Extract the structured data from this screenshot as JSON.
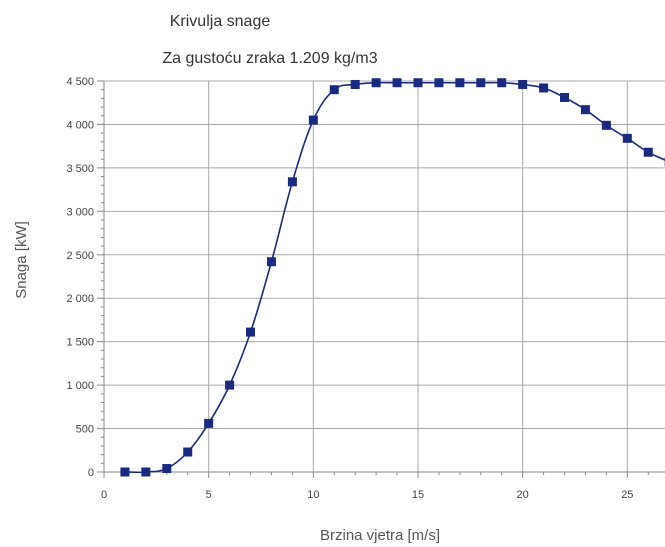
{
  "colors": {
    "series": "#1a2a80",
    "grid": "#a9a9a9",
    "axis": "#888888",
    "background": "#ffffff"
  },
  "chart_data": {
    "type": "line",
    "title": "Krivulja snage",
    "subtitle": "Za gustoću zraka 1.209 kg/m3",
    "xlabel": "Brzina vjetra [m/s]",
    "ylabel": "Snaga [kW]",
    "xlim": [
      0,
      26.8
    ],
    "ylim": [
      0,
      4500
    ],
    "x_ticks": [
      0,
      5,
      10,
      15,
      20,
      25
    ],
    "x_tick_labels": [
      "0",
      "5",
      "10",
      "15",
      "20",
      "25"
    ],
    "y_ticks": [
      0,
      500,
      1000,
      1500,
      2000,
      2500,
      3000,
      3500,
      4000,
      4500
    ],
    "y_tick_labels": [
      "0",
      "500",
      "1 000",
      "1 500",
      "2 000",
      "2 500",
      "3 000",
      "3 500",
      "4 000",
      "4 500"
    ],
    "grid": true,
    "marker": "square",
    "x": [
      1,
      2,
      3,
      4,
      5,
      6,
      7,
      8,
      9,
      10,
      11,
      12,
      13,
      14,
      15,
      16,
      17,
      18,
      19,
      20,
      21,
      22,
      23,
      24,
      25,
      26,
      27
    ],
    "values": [
      0,
      0,
      40,
      230,
      560,
      1000,
      1610,
      2420,
      3340,
      4050,
      4400,
      4460,
      4480,
      4480,
      4480,
      4480,
      4480,
      4480,
      4480,
      4460,
      4420,
      4310,
      4170,
      3990,
      3840,
      3680,
      3570
    ]
  }
}
